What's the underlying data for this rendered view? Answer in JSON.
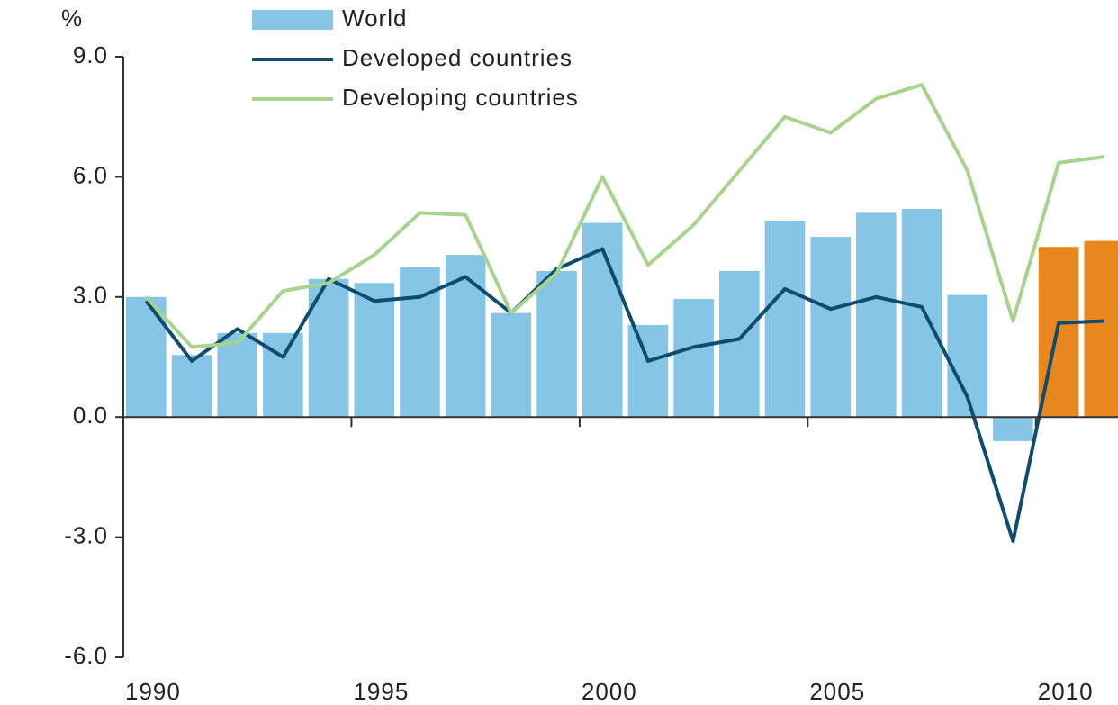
{
  "chart_data": {
    "type": "bar_line",
    "y_unit_label": "%",
    "x": [
      1990,
      1991,
      1992,
      1993,
      1994,
      1995,
      1996,
      1997,
      1998,
      1999,
      2000,
      2001,
      2002,
      2003,
      2004,
      2005,
      2006,
      2007,
      2008,
      2009,
      2010,
      2011
    ],
    "xlim": [
      1990,
      2011.8
    ],
    "xticks": [
      1990,
      1995,
      2000,
      2005,
      2010
    ],
    "ylim": [
      -6,
      9
    ],
    "yticks": [
      {
        "value": -6,
        "label": "-6.0"
      },
      {
        "value": -3,
        "label": "-3.0"
      },
      {
        "value": 0,
        "label": "0.0"
      },
      {
        "value": 3,
        "label": "3.0"
      },
      {
        "value": 6,
        "label": "6.0"
      },
      {
        "value": 9,
        "label": "9.0"
      }
    ],
    "series": [
      {
        "name": "World",
        "kind": "bar",
        "color": "#85c6e7",
        "colors": [
          "#85c6e7",
          "#85c6e7",
          "#85c6e7",
          "#85c6e7",
          "#85c6e7",
          "#85c6e7",
          "#85c6e7",
          "#85c6e7",
          "#85c6e7",
          "#85c6e7",
          "#85c6e7",
          "#85c6e7",
          "#85c6e7",
          "#85c6e7",
          "#85c6e7",
          "#85c6e7",
          "#85c6e7",
          "#85c6e7",
          "#85c6e7",
          "#85c6e7",
          "#e8871e",
          "#e8871e"
        ],
        "values": [
          3.0,
          1.55,
          2.1,
          2.1,
          3.45,
          3.35,
          3.75,
          4.05,
          2.6,
          3.65,
          4.85,
          2.3,
          2.95,
          3.65,
          4.9,
          4.5,
          5.1,
          5.2,
          3.05,
          -0.6,
          4.25,
          4.4
        ]
      },
      {
        "name": "Developed countries",
        "kind": "line",
        "color": "#0f4c6e",
        "values": [
          2.9,
          1.4,
          2.2,
          1.5,
          3.45,
          2.9,
          3.0,
          3.5,
          2.6,
          3.7,
          4.2,
          1.4,
          1.75,
          1.95,
          3.2,
          2.7,
          3.0,
          2.75,
          0.5,
          -3.1,
          2.35,
          2.4
        ]
      },
      {
        "name": "Developing countries",
        "kind": "line",
        "color": "#a6d48c",
        "values": [
          3.0,
          1.75,
          1.85,
          3.15,
          3.35,
          4.05,
          5.1,
          5.05,
          2.6,
          3.6,
          6.0,
          3.8,
          4.8,
          6.15,
          7.5,
          7.1,
          7.95,
          8.3,
          6.15,
          2.4,
          6.35,
          6.5
        ]
      }
    ]
  }
}
